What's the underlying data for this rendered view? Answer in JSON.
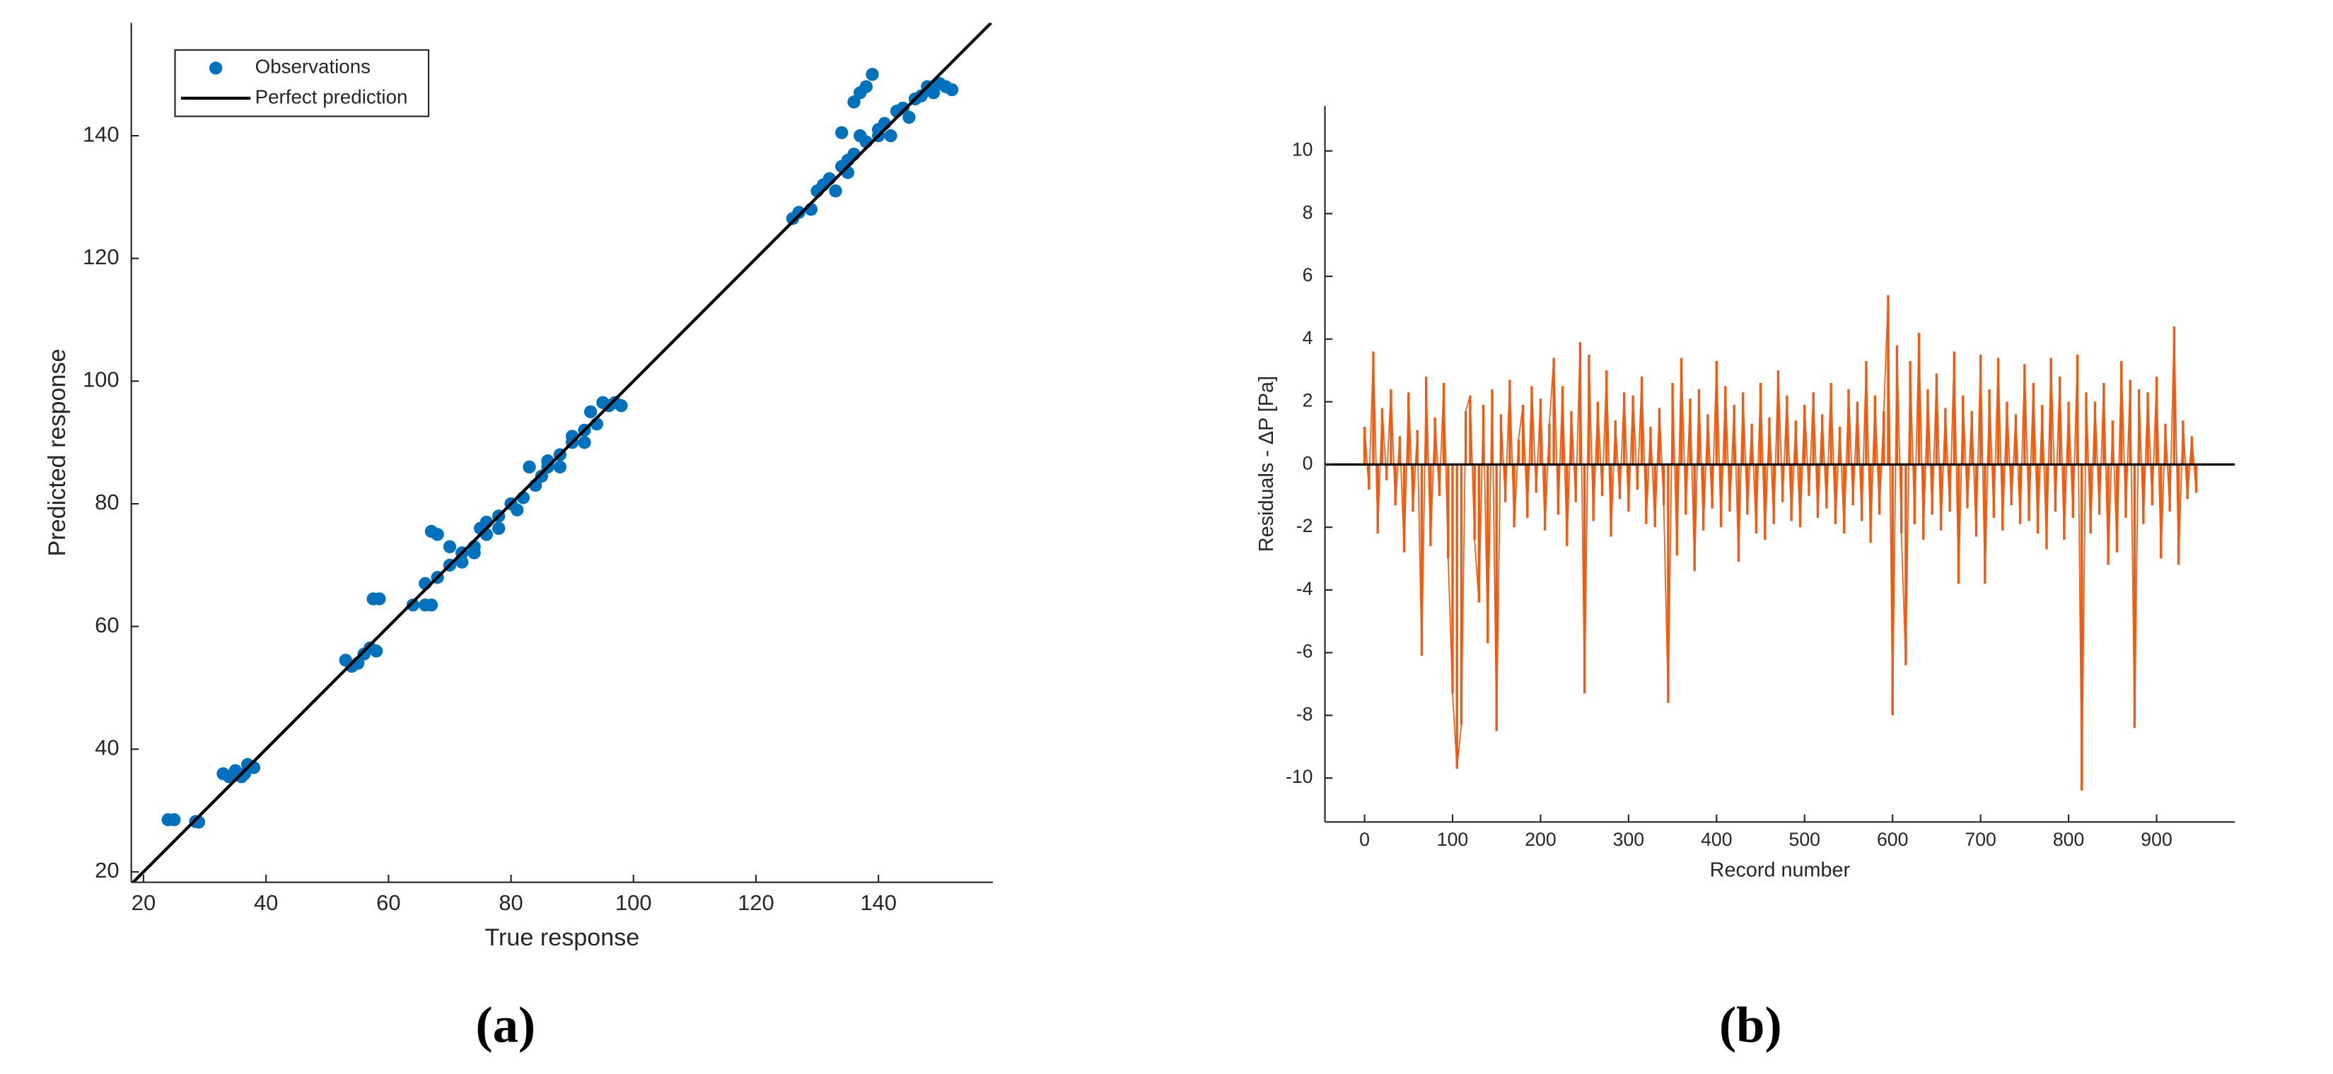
{
  "chart_data": [
    {
      "type": "scatter",
      "panel_label": "(a)",
      "x_label": "True response",
      "y_label": "Predicted response",
      "xlim": [
        18,
        158.7
      ],
      "ylim": [
        18.3,
        158.4
      ],
      "xticks": [
        20,
        40,
        60,
        80,
        100,
        120,
        140
      ],
      "yticks": [
        20,
        40,
        60,
        80,
        100,
        120,
        140
      ],
      "legend": "upper left",
      "series": [
        {
          "name": "Observations",
          "color": "#0072bd",
          "mode": "markers",
          "x": [
            24,
            25,
            28.5,
            29,
            33,
            34,
            35,
            36,
            37,
            38,
            36.5,
            53,
            54,
            55,
            56,
            57,
            58,
            57.5,
            58.5,
            64,
            66,
            67,
            67,
            68,
            66,
            68,
            70,
            72,
            70,
            74,
            75,
            76,
            78,
            78,
            80,
            81,
            82,
            83,
            84,
            86,
            86,
            88,
            88,
            90,
            90,
            92,
            92,
            93,
            94,
            95,
            96,
            97,
            98,
            74,
            72,
            76,
            85,
            126,
            127,
            129,
            130,
            132,
            133,
            134,
            135,
            136,
            137,
            136,
            137,
            138,
            139,
            134,
            138,
            140,
            140,
            141,
            142,
            143,
            144,
            145,
            146,
            147,
            148,
            149,
            150,
            151,
            152,
            135,
            131
          ],
          "values": [
            28.5,
            28.5,
            28.2,
            28.1,
            36,
            35.5,
            36.5,
            35.5,
            37.5,
            37,
            36,
            54.5,
            53.5,
            54,
            55.5,
            56.5,
            56,
            64.5,
            64.5,
            63.5,
            63.5,
            63.5,
            75.5,
            75,
            67,
            68,
            70,
            72,
            73,
            73,
            76,
            75,
            78,
            76,
            80,
            79,
            81,
            86,
            83,
            86,
            87,
            88,
            86,
            90,
            91,
            92,
            90,
            95,
            93,
            96.5,
            96,
            96.5,
            96,
            72,
            70.5,
            77,
            84.5,
            126.5,
            127.5,
            128,
            131,
            133,
            131,
            135,
            134,
            137,
            140,
            145.5,
            147,
            148,
            150,
            140.5,
            139,
            140,
            141,
            142,
            140,
            144,
            144.5,
            143,
            146,
            146.5,
            148,
            147,
            148.5,
            148,
            147.5,
            136,
            132
          ]
        },
        {
          "name": "Perfect prediction",
          "color": "#000000",
          "mode": "line",
          "x": [
            18,
            158.4
          ],
          "values": [
            18,
            158.4
          ]
        }
      ]
    },
    {
      "type": "stem",
      "panel_label": "(b)",
      "x_label": "Record number",
      "y_label": "Residuals - ΔP [Pa]",
      "xlim": [
        -45,
        989
      ],
      "ylim": [
        -11.4,
        11.44
      ],
      "xticks": [
        0,
        100,
        200,
        300,
        400,
        500,
        600,
        700,
        800,
        900
      ],
      "yticks": [
        -10,
        -8,
        -6,
        -4,
        -2,
        0,
        2,
        4,
        6,
        8,
        10
      ],
      "baseline": 0,
      "baseline_color": "#000000",
      "series": [
        {
          "color": "#f25a0f",
          "x": [
            0,
            5,
            10,
            15,
            20,
            25,
            30,
            35,
            40,
            45,
            50,
            55,
            60,
            65,
            70,
            75,
            80,
            85,
            90,
            95,
            100,
            105,
            110,
            115,
            120,
            125,
            130,
            135,
            140,
            145,
            150,
            155,
            160,
            165,
            170,
            175,
            180,
            185,
            190,
            195,
            200,
            205,
            210,
            215,
            220,
            225,
            230,
            235,
            240,
            245,
            250,
            255,
            260,
            265,
            270,
            275,
            280,
            285,
            290,
            295,
            300,
            305,
            310,
            315,
            320,
            325,
            330,
            335,
            340,
            345,
            350,
            355,
            360,
            365,
            370,
            375,
            380,
            385,
            390,
            395,
            400,
            405,
            410,
            415,
            420,
            425,
            430,
            435,
            440,
            445,
            450,
            455,
            460,
            465,
            470,
            475,
            480,
            485,
            490,
            495,
            500,
            505,
            510,
            515,
            520,
            525,
            530,
            535,
            540,
            545,
            550,
            555,
            560,
            565,
            570,
            575,
            580,
            585,
            590,
            595,
            600,
            605,
            610,
            615,
            620,
            625,
            630,
            635,
            640,
            645,
            650,
            655,
            660,
            665,
            670,
            675,
            680,
            685,
            690,
            695,
            700,
            705,
            710,
            715,
            720,
            725,
            730,
            735,
            740,
            745,
            750,
            755,
            760,
            765,
            770,
            775,
            780,
            785,
            790,
            795,
            800,
            805,
            810,
            815,
            820,
            825,
            830,
            835,
            840,
            845,
            850,
            855,
            860,
            865,
            870,
            875,
            880,
            885,
            890,
            895,
            900,
            905,
            910,
            915,
            920,
            925,
            930,
            935,
            940,
            945
          ],
          "values": [
            1.2,
            -0.8,
            3.6,
            -2.2,
            1.8,
            -0.5,
            2.4,
            -1.3,
            0.9,
            -2.8,
            2.3,
            -1.5,
            1.1,
            -6.1,
            2.8,
            -2.6,
            1.5,
            -1.0,
            2.6,
            -3.0,
            -7.3,
            -9.7,
            -8.3,
            1.7,
            2.2,
            -2.4,
            -4.4,
            1.9,
            -5.7,
            2.4,
            -8.5,
            1.6,
            -1.2,
            2.7,
            -2.0,
            0.8,
            1.9,
            -1.7,
            2.5,
            -0.9,
            2.1,
            -2.1,
            1.3,
            3.4,
            -1.6,
            2.5,
            -2.6,
            1.7,
            -1.2,
            3.9,
            -7.3,
            3.5,
            -1.8,
            2.0,
            -1.0,
            3.0,
            -2.3,
            1.4,
            -1.1,
            2.3,
            -1.5,
            2.2,
            -0.8,
            2.8,
            -1.9,
            1.2,
            -2.0,
            1.8,
            -1.3,
            -7.6,
            2.6,
            -2.9,
            3.4,
            -1.6,
            2.1,
            -3.4,
            2.4,
            -2.1,
            1.6,
            -1.4,
            3.3,
            -2.0,
            2.5,
            -1.5,
            1.9,
            -3.1,
            2.3,
            -1.6,
            1.3,
            -2.2,
            2.6,
            -2.4,
            1.5,
            -1.9,
            3.0,
            -1.2,
            2.2,
            -1.8,
            1.4,
            -2.0,
            1.9,
            -1.0,
            2.3,
            -1.7,
            1.6,
            -1.4,
            2.6,
            -1.9,
            1.2,
            -2.2,
            2.4,
            -1.3,
            2.0,
            -1.8,
            3.3,
            -2.5,
            2.2,
            -1.6,
            1.7,
            5.4,
            -8.0,
            3.8,
            -2.2,
            -6.4,
            3.3,
            -1.9,
            4.2,
            -2.4,
            2.4,
            -1.6,
            2.9,
            -2.1,
            1.8,
            -1.5,
            3.6,
            -3.8,
            2.2,
            -1.4,
            1.7,
            -2.3,
            3.5,
            -3.8,
            2.4,
            -1.7,
            3.4,
            -2.1,
            2.0,
            -1.3,
            1.6,
            -1.9,
            3.2,
            -1.8,
            2.6,
            -2.2,
            1.9,
            -2.7,
            3.4,
            -1.5,
            2.8,
            -2.4,
            2.0,
            -1.7,
            3.5,
            -10.4,
            2.3,
            -2.2,
            2.0,
            -1.6,
            2.6,
            -3.2,
            1.4,
            -2.8,
            3.3,
            -1.7,
            2.7,
            -8.4,
            2.4,
            -1.9,
            2.3,
            -1.3,
            2.8,
            -3.0,
            1.3,
            -1.5,
            4.4,
            -3.2,
            1.4,
            -1.1,
            0.9,
            -0.9
          ]
        }
      ]
    }
  ]
}
